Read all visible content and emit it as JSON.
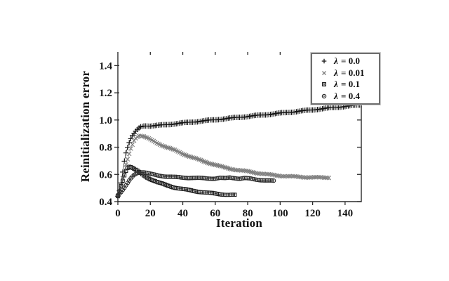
{
  "chart_data": {
    "type": "scatter",
    "title": "",
    "xlabel": "Iteration",
    "ylabel": "Reinitialization error",
    "xlim": [
      0,
      150
    ],
    "ylim": [
      0.4,
      1.5
    ],
    "xticks": [
      0,
      20,
      40,
      60,
      80,
      100,
      120,
      140
    ],
    "xtick_labels": [
      "0",
      "20",
      "40",
      "60",
      "80",
      "100",
      "120",
      "140"
    ],
    "yticks": [
      0.4,
      0.6,
      0.8,
      1.0,
      1.2,
      1.4
    ],
    "ytick_labels": [
      "0.4",
      "0.6",
      "0.8",
      "1.0",
      "1.2",
      "1.4"
    ],
    "grid": false,
    "legend_position": "top-right",
    "frame": {
      "left": true,
      "bottom": true,
      "right": true,
      "top": false
    },
    "axis_color": "#2b2b2b",
    "series": [
      {
        "name": "lambda-0.0",
        "label": "λ = 0.0",
        "marker": "plus",
        "color": "#141414",
        "line_color": "#1a1a1a",
        "marker_step": 1,
        "points": [
          [
            0,
            0.44
          ],
          [
            1,
            0.48
          ],
          [
            2,
            0.54
          ],
          [
            3,
            0.62
          ],
          [
            4,
            0.7
          ],
          [
            5,
            0.76
          ],
          [
            6,
            0.8
          ],
          [
            7,
            0.835
          ],
          [
            8,
            0.862
          ],
          [
            9,
            0.885
          ],
          [
            10,
            0.9
          ],
          [
            11,
            0.915
          ],
          [
            12,
            0.928
          ],
          [
            13,
            0.94
          ],
          [
            14,
            0.949
          ],
          [
            15,
            0.954
          ],
          [
            16,
            0.957
          ],
          [
            18,
            0.958
          ],
          [
            20,
            0.956
          ],
          [
            25,
            0.96
          ],
          [
            30,
            0.966
          ],
          [
            35,
            0.972
          ],
          [
            40,
            0.978
          ],
          [
            50,
            0.99
          ],
          [
            60,
            1.002
          ],
          [
            70,
            1.014
          ],
          [
            80,
            1.026
          ],
          [
            90,
            1.038
          ],
          [
            100,
            1.05
          ],
          [
            110,
            1.062
          ],
          [
            120,
            1.075
          ],
          [
            130,
            1.088
          ],
          [
            140,
            1.1
          ],
          [
            150,
            1.112
          ]
        ]
      },
      {
        "name": "lambda-0.01",
        "label": "λ = 0.01",
        "marker": "cross",
        "color": "#7d7d7d",
        "line_color": "#8f8f8f",
        "marker_step": 1,
        "points": [
          [
            0,
            0.44
          ],
          [
            1,
            0.47
          ],
          [
            2,
            0.52
          ],
          [
            3,
            0.57
          ],
          [
            4,
            0.62
          ],
          [
            5,
            0.67
          ],
          [
            6,
            0.71
          ],
          [
            7,
            0.75
          ],
          [
            8,
            0.79
          ],
          [
            9,
            0.82
          ],
          [
            10,
            0.85
          ],
          [
            11,
            0.868
          ],
          [
            12,
            0.878
          ],
          [
            13,
            0.885
          ],
          [
            14,
            0.885
          ],
          [
            16,
            0.878
          ],
          [
            18,
            0.868
          ],
          [
            20,
            0.856
          ],
          [
            25,
            0.826
          ],
          [
            30,
            0.8
          ],
          [
            35,
            0.778
          ],
          [
            40,
            0.752
          ],
          [
            45,
            0.728
          ],
          [
            50,
            0.708
          ],
          [
            55,
            0.688
          ],
          [
            60,
            0.67
          ],
          [
            65,
            0.653
          ],
          [
            70,
            0.64
          ],
          [
            75,
            0.63
          ],
          [
            80,
            0.622
          ],
          [
            85,
            0.612
          ],
          [
            90,
            0.603
          ],
          [
            95,
            0.596
          ],
          [
            100,
            0.59
          ],
          [
            105,
            0.586
          ],
          [
            110,
            0.583
          ],
          [
            115,
            0.58
          ],
          [
            120,
            0.578
          ],
          [
            125,
            0.577
          ],
          [
            130,
            0.577
          ]
        ]
      },
      {
        "name": "lambda-0.1",
        "label": "λ = 0.1",
        "marker": "square-dot",
        "color": "#1e1e1e",
        "line_color": "#2a2a2a",
        "marker_step": 1,
        "points": [
          [
            0,
            0.44
          ],
          [
            1,
            0.475
          ],
          [
            2,
            0.515
          ],
          [
            3,
            0.555
          ],
          [
            4,
            0.595
          ],
          [
            5,
            0.628
          ],
          [
            6,
            0.65
          ],
          [
            7,
            0.658
          ],
          [
            8,
            0.655
          ],
          [
            9,
            0.648
          ],
          [
            10,
            0.64
          ],
          [
            12,
            0.625
          ],
          [
            14,
            0.608
          ],
          [
            16,
            0.592
          ],
          [
            18,
            0.578
          ],
          [
            20,
            0.566
          ],
          [
            25,
            0.54
          ],
          [
            30,
            0.52
          ],
          [
            35,
            0.504
          ],
          [
            40,
            0.492
          ],
          [
            45,
            0.482
          ],
          [
            50,
            0.473
          ],
          [
            55,
            0.465
          ],
          [
            60,
            0.459
          ],
          [
            65,
            0.453
          ],
          [
            68,
            0.45
          ],
          [
            70,
            0.449
          ],
          [
            72,
            0.448
          ]
        ]
      },
      {
        "name": "lambda-0.4",
        "label": "λ = 0.4",
        "marker": "circle-dot",
        "color": "#2e2e2e",
        "line_color": "#3a3a3a",
        "marker_step": 1,
        "points": [
          [
            0,
            0.45
          ],
          [
            2,
            0.47
          ],
          [
            4,
            0.5
          ],
          [
            6,
            0.535
          ],
          [
            8,
            0.57
          ],
          [
            10,
            0.597
          ],
          [
            12,
            0.612
          ],
          [
            14,
            0.618
          ],
          [
            16,
            0.616
          ],
          [
            18,
            0.61
          ],
          [
            20,
            0.603
          ],
          [
            25,
            0.592
          ],
          [
            30,
            0.585
          ],
          [
            35,
            0.58
          ],
          [
            40,
            0.577
          ],
          [
            45,
            0.575
          ],
          [
            50,
            0.573
          ],
          [
            55,
            0.571
          ],
          [
            60,
            0.57
          ],
          [
            63,
            0.574
          ],
          [
            66,
            0.571
          ],
          [
            69,
            0.577
          ],
          [
            72,
            0.574
          ],
          [
            75,
            0.569
          ],
          [
            78,
            0.572
          ],
          [
            81,
            0.569
          ],
          [
            84,
            0.565
          ],
          [
            87,
            0.561
          ],
          [
            90,
            0.557
          ],
          [
            93,
            0.554
          ],
          [
            96,
            0.552
          ]
        ]
      }
    ]
  }
}
